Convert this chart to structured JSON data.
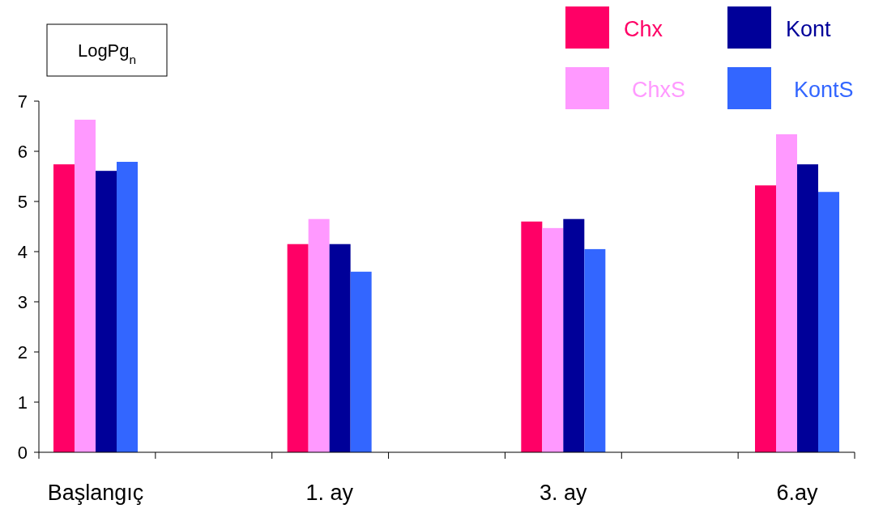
{
  "chart_data": {
    "type": "bar",
    "ylabel": "LogPg$_{n}$",
    "categories": [
      "Başlangıç",
      "1. ay",
      "3. ay",
      "6.ay"
    ],
    "series": [
      {
        "name": "Chx",
        "color": "#ff0066",
        "values": [
          5.74,
          4.15,
          4.6,
          5.32
        ]
      },
      {
        "name": "ChxS",
        "color": "#ff99ff",
        "values": [
          6.63,
          4.65,
          4.47,
          6.34
        ]
      },
      {
        "name": "Kont",
        "color": "#000099",
        "values": [
          5.61,
          4.15,
          4.65,
          5.74
        ]
      },
      {
        "name": "KontS",
        "color": "#3366ff",
        "values": [
          5.79,
          3.6,
          4.05,
          5.19
        ]
      }
    ],
    "ylim": [
      0,
      7
    ],
    "yticks": [
      0,
      1,
      2,
      3,
      4,
      5,
      6,
      7
    ],
    "grid": false,
    "legend": "top right"
  }
}
